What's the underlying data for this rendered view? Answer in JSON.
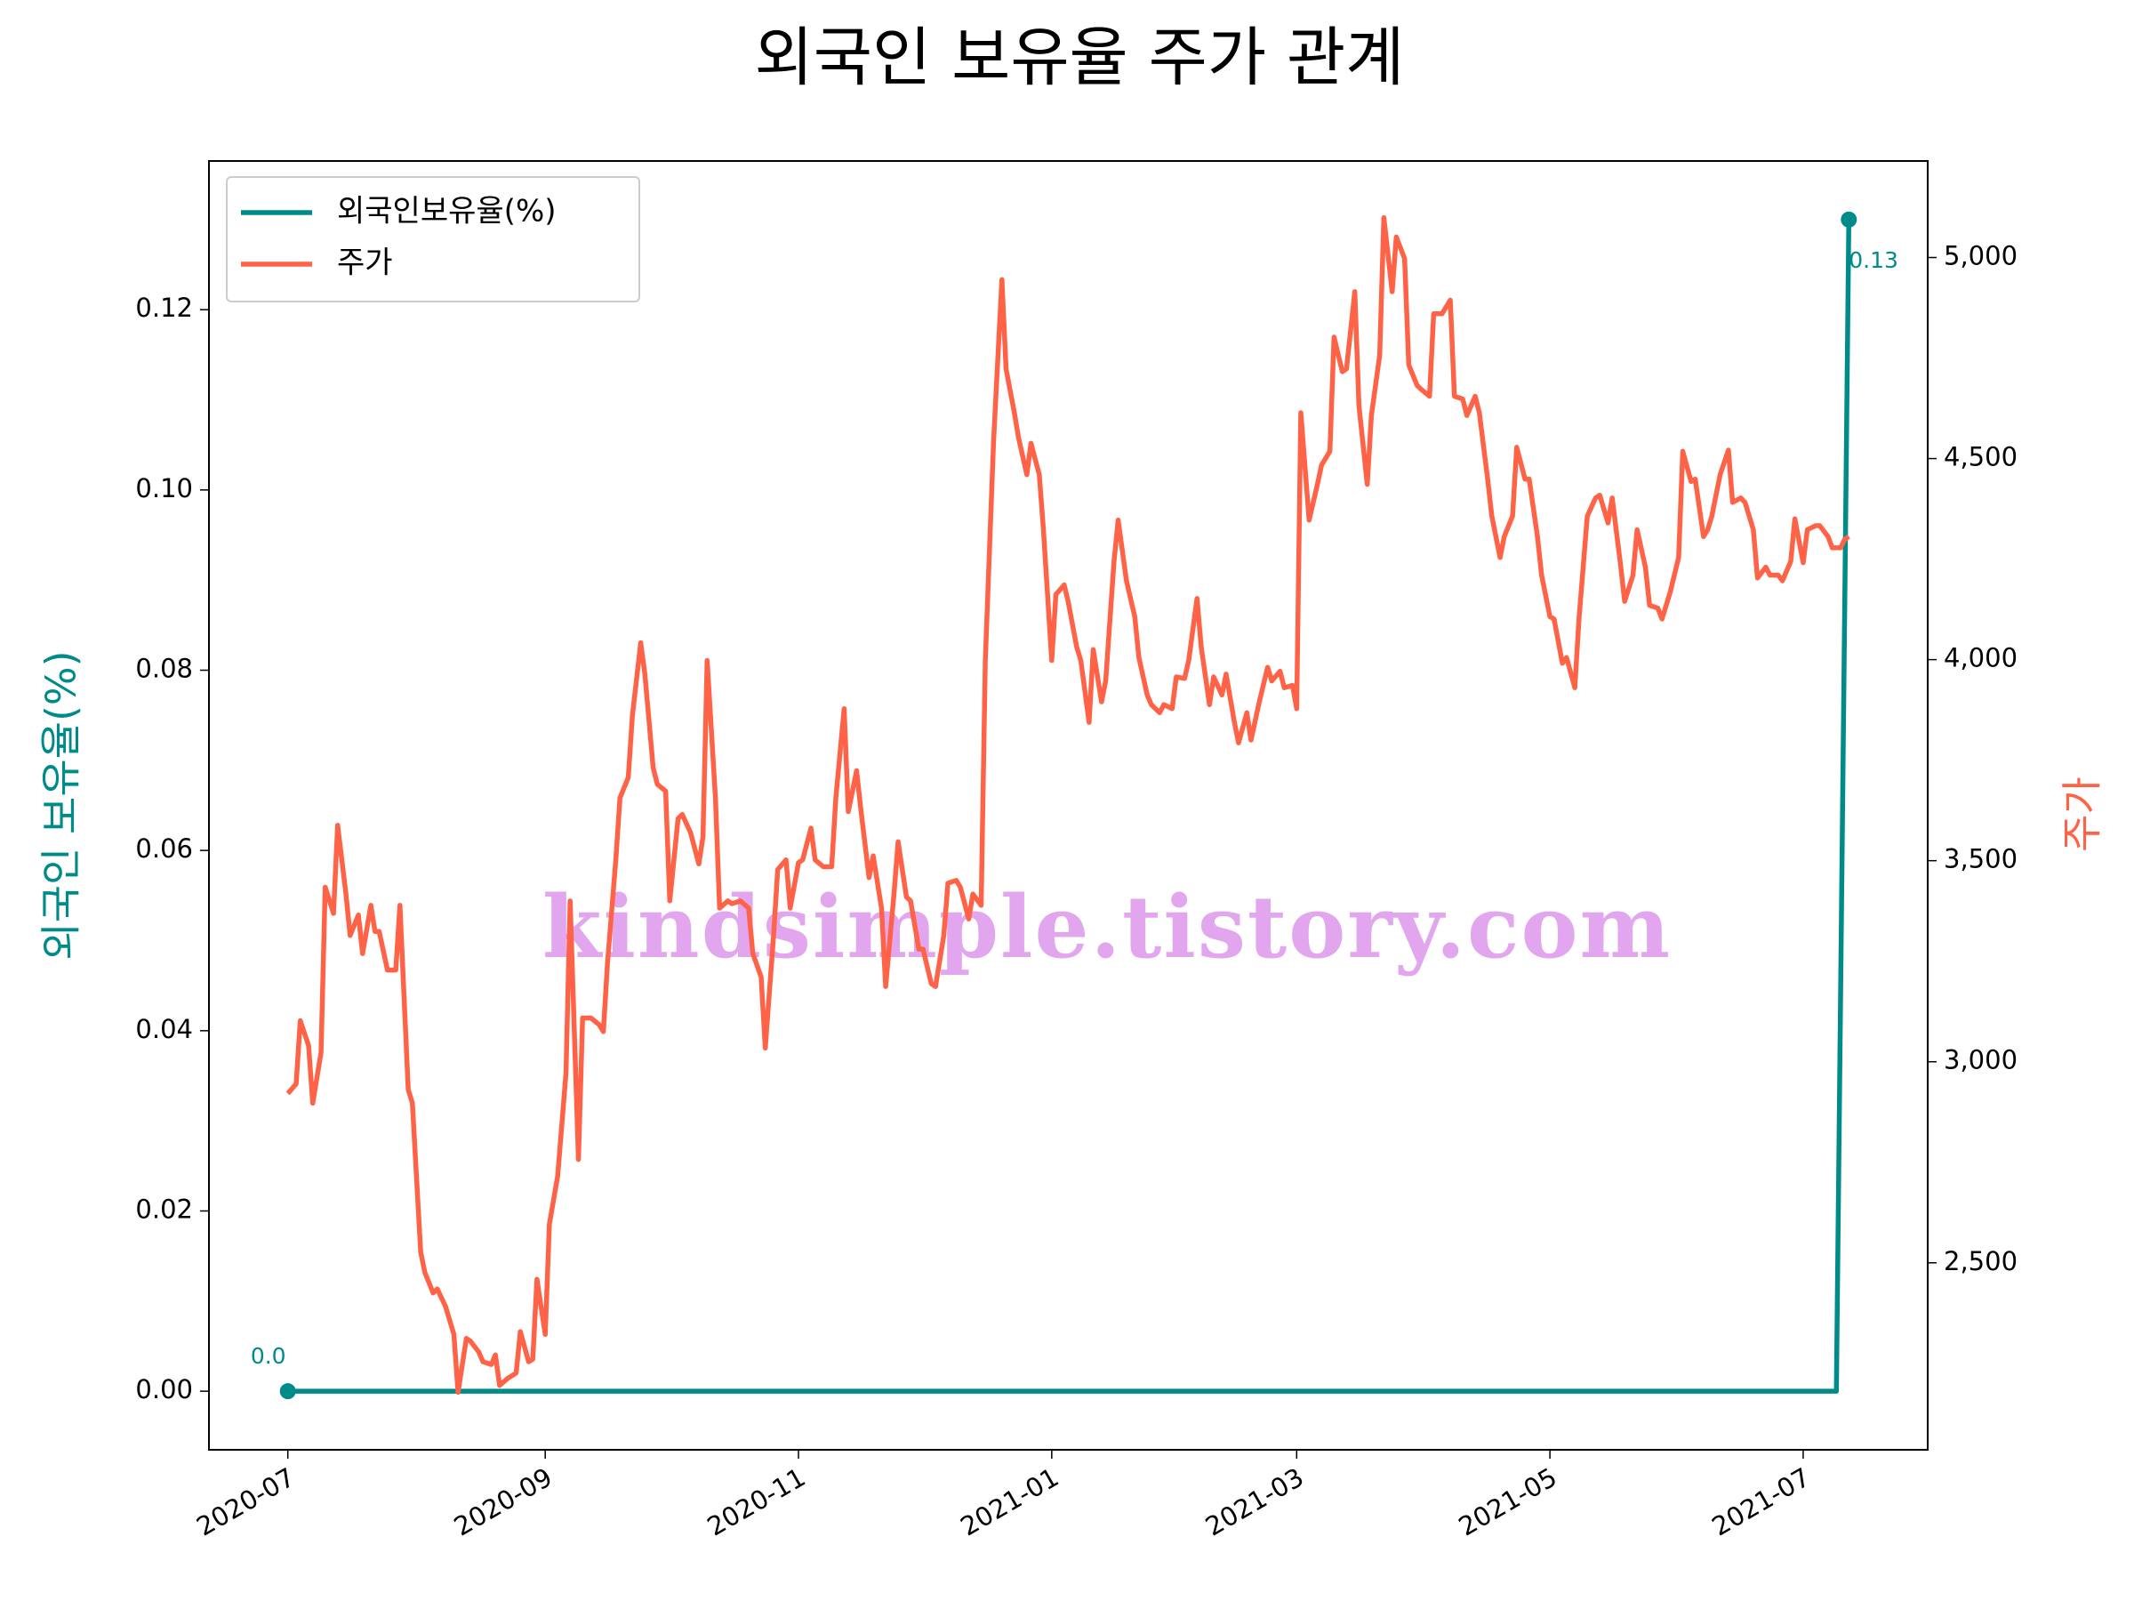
{
  "chart_data": {
    "type": "line",
    "title": "외국인 보유율 주가 관계",
    "ylabel": "외국인 보유율(%)",
    "y2label": "주가",
    "watermark": "kindsimple.tistory.com",
    "legend": "upper left",
    "xlim": [
      "2020-06-12",
      "2021-07-31"
    ],
    "xticks": [
      "2020-07",
      "2020-09",
      "2020-11",
      "2021-01",
      "2021-03",
      "2021-05",
      "2021-07"
    ],
    "ylim": [
      -0.0065,
      0.1365
    ],
    "yticks": [
      {
        "value": 0,
        "label": "0.00"
      },
      {
        "value": 0.02,
        "label": "0.02"
      },
      {
        "value": 0.04,
        "label": "0.04"
      },
      {
        "value": 0.06,
        "label": "0.06"
      },
      {
        "value": 0.08,
        "label": "0.08"
      },
      {
        "value": 0.1,
        "label": "0.10"
      },
      {
        "value": 0.12,
        "label": "0.12"
      }
    ],
    "y2lim": [
      2035,
      5240
    ],
    "y2ticks": [
      {
        "value": 2500,
        "label": "2,500"
      },
      {
        "value": 3000,
        "label": "3,000"
      },
      {
        "value": 3500,
        "label": "3,500"
      },
      {
        "value": 4000,
        "label": "4,000"
      },
      {
        "value": 4500,
        "label": "4,500"
      },
      {
        "value": 5000,
        "label": "5,000"
      }
    ],
    "series": [
      {
        "name": "외국인보유율(%)",
        "color": "#008b8b",
        "x": [
          "2020-07-01",
          "2021-07-09",
          "2021-07-12"
        ],
        "values": [
          0,
          0,
          0.13
        ],
        "value_labels": [
          "0.0",
          null,
          "0.13"
        ]
      },
      {
        "name": "주가",
        "color": "#ff6347",
        "axis": "y2",
        "x": [
          "2020-07-01",
          "2020-07-03",
          "2020-07-04",
          "2020-07-06",
          "2020-07-07",
          "2020-07-09",
          "2020-07-10",
          "2020-07-12",
          "2020-07-13",
          "2020-07-15",
          "2020-07-16",
          "2020-07-18",
          "2020-07-19",
          "2020-07-21",
          "2020-07-22",
          "2020-07-23",
          "2020-07-25",
          "2020-07-27",
          "2020-07-28",
          "2020-07-30",
          "2020-07-31",
          "2020-08-02",
          "2020-08-03",
          "2020-08-05",
          "2020-08-06",
          "2020-08-08",
          "2020-08-10",
          "2020-08-11",
          "2020-08-13",
          "2020-08-14",
          "2020-08-16",
          "2020-08-17",
          "2020-08-19",
          "2020-08-20",
          "2020-08-21",
          "2020-08-23",
          "2020-08-25",
          "2020-08-26",
          "2020-08-28",
          "2020-08-29",
          "2020-08-30",
          "2020-09-01",
          "2020-09-02",
          "2020-09-04",
          "2020-09-06",
          "2020-09-07",
          "2020-09-09",
          "2020-09-10",
          "2020-09-12",
          "2020-09-14",
          "2020-09-15",
          "2020-09-16",
          "2020-09-18",
          "2020-09-19",
          "2020-09-21",
          "2020-09-22",
          "2020-09-24",
          "2020-09-25",
          "2020-09-27",
          "2020-09-28",
          "2020-09-30",
          "2020-10-01",
          "2020-10-03",
          "2020-10-04",
          "2020-10-06",
          "2020-10-08",
          "2020-10-09",
          "2020-10-10",
          "2020-10-12",
          "2020-10-13",
          "2020-10-15",
          "2020-10-16",
          "2020-10-18",
          "2020-10-20",
          "2020-10-21",
          "2020-10-23",
          "2020-10-24",
          "2020-10-26",
          "2020-10-27",
          "2020-10-29",
          "2020-10-30",
          "2020-11-01",
          "2020-11-02",
          "2020-11-04",
          "2020-11-05",
          "2020-11-07",
          "2020-11-09",
          "2020-11-10",
          "2020-11-12",
          "2020-11-13",
          "2020-11-15",
          "2020-11-16",
          "2020-11-18",
          "2020-11-19",
          "2020-11-21",
          "2020-11-22",
          "2020-11-24",
          "2020-11-25",
          "2020-11-27",
          "2020-11-28",
          "2020-11-30",
          "2020-12-01",
          "2020-12-03",
          "2020-12-04",
          "2020-12-06",
          "2020-12-07",
          "2020-12-09",
          "2020-12-10",
          "2020-12-12",
          "2020-12-13",
          "2020-12-15",
          "2020-12-16",
          "2020-12-18",
          "2020-12-20",
          "2020-12-21",
          "2020-12-23",
          "2020-12-24",
          "2020-12-26",
          "2020-12-27",
          "2020-12-29",
          "2020-12-30",
          "2021-01-01",
          "2021-01-02",
          "2021-01-04",
          "2021-01-05",
          "2021-01-07",
          "2021-01-08",
          "2021-01-10",
          "2021-01-11",
          "2021-01-13",
          "2021-01-14",
          "2021-01-16",
          "2021-01-17",
          "2021-01-19",
          "2021-01-21",
          "2021-01-22",
          "2021-01-24",
          "2021-01-25",
          "2021-01-27",
          "2021-01-28",
          "2021-01-30",
          "2021-01-31",
          "2021-02-02",
          "2021-02-03",
          "2021-02-05",
          "2021-02-06",
          "2021-02-08",
          "2021-02-09",
          "2021-02-11",
          "2021-02-12",
          "2021-02-14",
          "2021-02-15",
          "2021-02-17",
          "2021-02-18",
          "2021-02-20",
          "2021-02-22",
          "2021-02-23",
          "2021-02-25",
          "2021-02-26",
          "2021-02-28",
          "2021-03-01",
          "2021-03-02",
          "2021-03-04",
          "2021-03-06",
          "2021-03-07",
          "2021-03-09",
          "2021-03-10",
          "2021-03-12",
          "2021-03-13",
          "2021-03-15",
          "2021-03-16",
          "2021-03-18",
          "2021-03-19",
          "2021-03-21",
          "2021-03-22",
          "2021-03-24",
          "2021-03-25",
          "2021-03-27",
          "2021-03-28",
          "2021-03-30",
          "2021-03-31",
          "2021-04-02",
          "2021-04-03",
          "2021-04-05",
          "2021-04-07",
          "2021-04-08",
          "2021-04-10",
          "2021-04-11",
          "2021-04-13",
          "2021-04-14",
          "2021-04-16",
          "2021-04-17",
          "2021-04-19",
          "2021-04-20",
          "2021-04-22",
          "2021-04-23",
          "2021-04-25",
          "2021-04-26",
          "2021-04-28",
          "2021-04-29",
          "2021-05-01",
          "2021-05-02",
          "2021-05-04",
          "2021-05-05",
          "2021-05-07",
          "2021-05-08",
          "2021-05-10",
          "2021-05-12",
          "2021-05-13",
          "2021-05-15",
          "2021-05-16",
          "2021-05-18",
          "2021-05-19",
          "2021-05-21",
          "2021-05-22",
          "2021-05-24",
          "2021-05-25",
          "2021-05-27",
          "2021-05-28",
          "2021-05-30",
          "2021-06-01",
          "2021-06-02",
          "2021-06-04",
          "2021-06-05",
          "2021-06-07",
          "2021-06-08",
          "2021-06-09",
          "2021-06-11",
          "2021-06-13",
          "2021-06-14",
          "2021-06-16",
          "2021-06-17",
          "2021-06-19",
          "2021-06-20",
          "2021-06-22",
          "2021-06-23",
          "2021-06-25",
          "2021-06-26",
          "2021-06-28",
          "2021-06-29",
          "2021-07-01",
          "2021-07-02",
          "2021-07-04",
          "2021-07-05",
          "2021-07-07",
          "2021-07-08",
          "2021-07-10",
          "2021-07-11",
          "2021-07-12"
        ],
        "values": [
          2921,
          2945,
          3102,
          3040,
          2897,
          3023,
          3434,
          3369,
          3588,
          3417,
          3314,
          3365,
          3269,
          3389,
          3324,
          3324,
          3228,
          3228,
          3389,
          2931,
          2897,
          2527,
          2476,
          2425,
          2435,
          2391,
          2322,
          2178,
          2312,
          2305,
          2278,
          2254,
          2247,
          2271,
          2195,
          2213,
          2226,
          2329,
          2254,
          2260,
          2459,
          2322,
          2596,
          2716,
          2972,
          3400,
          2757,
          3109,
          3109,
          3092,
          3075,
          3246,
          3502,
          3656,
          3707,
          3861,
          4042,
          3964,
          3731,
          3690,
          3673,
          3400,
          3605,
          3615,
          3570,
          3492,
          3560,
          3998,
          3656,
          3382,
          3400,
          3393,
          3400,
          3382,
          3269,
          3211,
          3034,
          3314,
          3478,
          3502,
          3382,
          3495,
          3502,
          3581,
          3502,
          3485,
          3485,
          3656,
          3878,
          3622,
          3724,
          3629,
          3458,
          3512,
          3382,
          3187,
          3417,
          3547,
          3410,
          3400,
          3280,
          3280,
          3194,
          3187,
          3314,
          3444,
          3451,
          3434,
          3355,
          3417,
          3389,
          3998,
          4545,
          4945,
          4723,
          4614,
          4552,
          4460,
          4538,
          4460,
          4323,
          3998,
          4162,
          4186,
          4142,
          4032,
          3998,
          3844,
          4025,
          3895,
          3947,
          4244,
          4347,
          4196,
          4107,
          4005,
          3912,
          3888,
          3868,
          3888,
          3878,
          3957,
          3953,
          3998,
          4152,
          4032,
          3888,
          3957,
          3912,
          3964,
          3844,
          3793,
          3868,
          3800,
          3895,
          3981,
          3947,
          3971,
          3930,
          3936,
          3878,
          4614,
          4347,
          4436,
          4484,
          4518,
          4802,
          4716,
          4723,
          4915,
          4631,
          4436,
          4607,
          4757,
          5099,
          4915,
          5051,
          4997,
          4733,
          4682,
          4672,
          4655,
          4860,
          4860,
          4894,
          4655,
          4648,
          4607,
          4655,
          4614,
          4449,
          4357,
          4254,
          4306,
          4357,
          4528,
          4449,
          4449,
          4306,
          4210,
          4107,
          4101,
          3991,
          4005,
          3930,
          4101,
          4357,
          4402,
          4409,
          4340,
          4402,
          4237,
          4145,
          4210,
          4323,
          4230,
          4135,
          4128,
          4101,
          4169,
          4254,
          4518,
          4443,
          4449,
          4306,
          4323,
          4357,
          4460,
          4521,
          4391,
          4402,
          4391,
          4323,
          4203,
          4230,
          4210,
          4210,
          4196,
          4244,
          4350,
          4241,
          4323,
          4333,
          4333,
          4306,
          4278,
          4278,
          4299,
          4306
        ]
      }
    ]
  }
}
